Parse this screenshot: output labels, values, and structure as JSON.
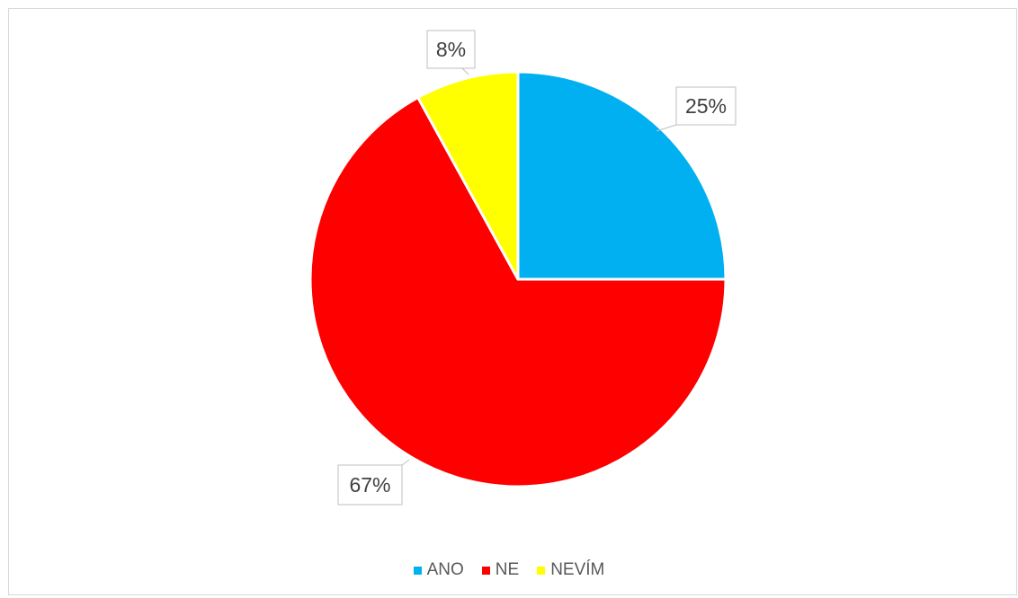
{
  "chart_data": {
    "type": "pie",
    "title": "",
    "slices": [
      {
        "label": "ANO",
        "value": 25,
        "display": "25%",
        "color": "#00B0F0"
      },
      {
        "label": "NE",
        "value": 67,
        "display": "67%",
        "color": "#FF0000"
      },
      {
        "label": "NEVÍM",
        "value": 8,
        "display": "8%",
        "color": "#FFFF00"
      }
    ],
    "legend_position": "bottom",
    "data_labels": "percentage in callout boxes"
  }
}
